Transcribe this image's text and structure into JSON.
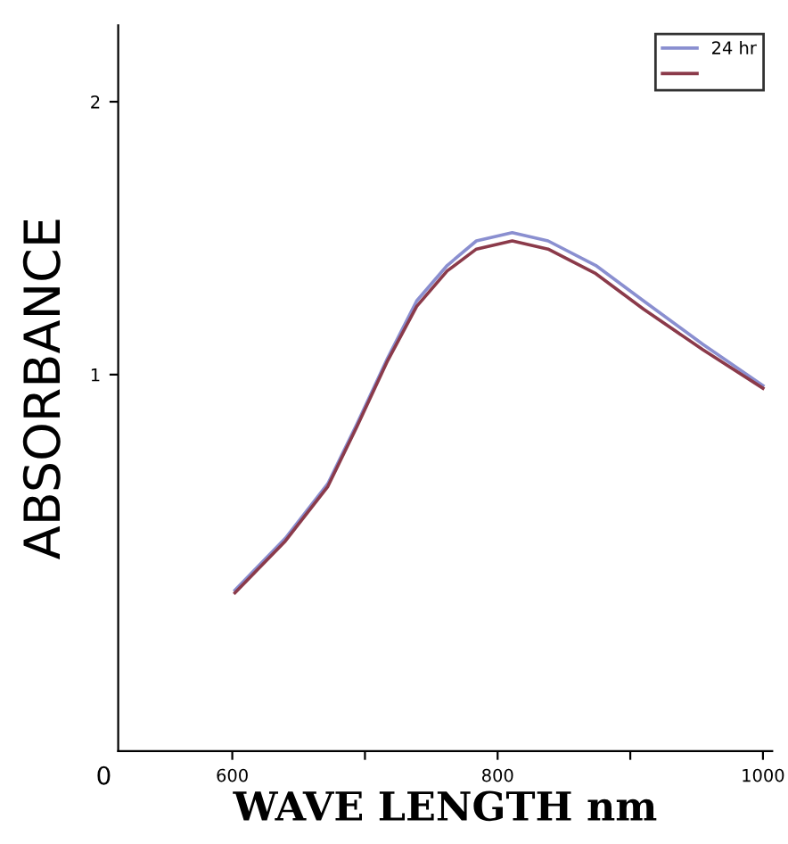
{
  "chart_data": {
    "type": "line",
    "xlabel": "WAVE LENGTH nm",
    "ylabel": "ABSORBANCE",
    "xlim": [
      514,
      1007
    ],
    "xticks": [
      600,
      {
        "value": 700,
        "label": null
      },
      800,
      {
        "value": 900,
        "label": null
      },
      1000
    ],
    "ylim": [
      -0.38,
      2.28
    ],
    "yticks": [
      1,
      2
    ],
    "annotations": [
      "0"
    ],
    "legend": "top right",
    "grid": false,
    "marker": "none",
    "line_style": "solid",
    "series": [
      {
        "name": "24 hr",
        "color": "#8a8fd0",
        "x": [
          602,
          640,
          672,
          694,
          717,
          739,
          762,
          784,
          811,
          838,
          874,
          910,
          955,
          1000
        ],
        "values": [
          0.21,
          0.4,
          0.6,
          0.82,
          1.06,
          1.27,
          1.4,
          1.49,
          1.52,
          1.49,
          1.4,
          1.27,
          1.11,
          0.96
        ]
      },
      {
        "color": "#8b3a4a",
        "x": [
          602,
          640,
          672,
          694,
          717,
          739,
          762,
          784,
          811,
          838,
          874,
          910,
          955,
          1000
        ],
        "values": [
          0.2,
          0.39,
          0.59,
          0.81,
          1.05,
          1.25,
          1.38,
          1.46,
          1.49,
          1.46,
          1.37,
          1.24,
          1.09,
          0.95
        ]
      }
    ]
  }
}
